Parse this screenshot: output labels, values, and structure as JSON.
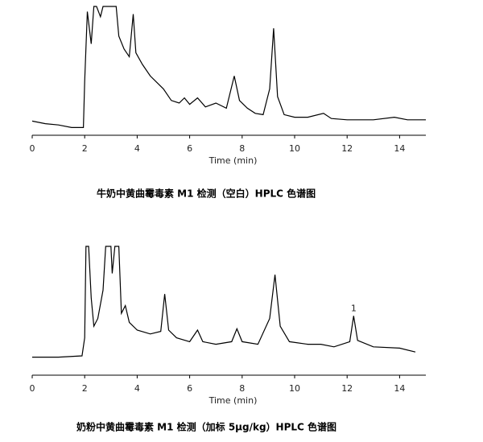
{
  "chart_data": [
    {
      "type": "line",
      "xlabel": "Time (min)",
      "caption": "牛奶中黄曲霉毒素 M1 检测（空白）HPLC 色谱图",
      "xlim": [
        0,
        15
      ],
      "xticks": [
        0,
        2,
        4,
        6,
        8,
        10,
        12,
        14
      ],
      "ylim": [
        0,
        100
      ],
      "color": "#000000",
      "x": [
        0,
        0.5,
        1,
        1.5,
        1.95,
        2.0,
        2.1,
        2.25,
        2.35,
        2.45,
        2.6,
        2.7,
        3.2,
        3.3,
        3.5,
        3.7,
        3.85,
        3.95,
        4.2,
        4.5,
        5,
        5.3,
        5.6,
        5.8,
        6.0,
        6.3,
        6.6,
        7.0,
        7.4,
        7.7,
        7.9,
        8.2,
        8.5,
        8.8,
        9.05,
        9.2,
        9.35,
        9.6,
        10,
        10.5,
        11.1,
        11.4,
        12,
        13,
        13.8,
        14.3,
        15
      ],
      "values": [
        11,
        9,
        8,
        6,
        6,
        42,
        96,
        71,
        100,
        100,
        92,
        100,
        100,
        77,
        67,
        61,
        94,
        64,
        55,
        46,
        36,
        27,
        25,
        29,
        24,
        29,
        22,
        25,
        21,
        46,
        27,
        21,
        17,
        16,
        36,
        83,
        30,
        16,
        14,
        14,
        17,
        13,
        12,
        12,
        14,
        12,
        12
      ]
    },
    {
      "type": "line",
      "xlabel": "Time (min)",
      "caption": "奶粉中黄曲霉毒素 M1 检测（加标 5μg/kg）HPLC 色谱图",
      "xlim": [
        0,
        15
      ],
      "xticks": [
        0,
        2,
        4,
        6,
        8,
        10,
        12,
        14
      ],
      "ylim": [
        0,
        100
      ],
      "color": "#000000",
      "annotations": [
        {
          "text": "1",
          "x": 12.25,
          "y": 46
        }
      ],
      "x": [
        0,
        1,
        1.9,
        2.0,
        2.05,
        2.15,
        2.25,
        2.35,
        2.5,
        2.7,
        2.8,
        3.0,
        3.05,
        3.15,
        3.3,
        3.4,
        3.55,
        3.7,
        4,
        4.5,
        4.9,
        5.05,
        5.2,
        5.5,
        6.0,
        6.3,
        6.5,
        7,
        7.6,
        7.8,
        8,
        8.6,
        9.05,
        9.25,
        9.45,
        9.8,
        10.5,
        11,
        11.5,
        12.1,
        12.25,
        12.4,
        13,
        14,
        14.6
      ],
      "values": [
        14,
        14,
        15,
        29,
        100,
        100,
        60,
        38,
        44,
        66,
        100,
        100,
        79,
        100,
        100,
        48,
        54,
        41,
        35,
        32,
        34,
        63,
        35,
        29,
        26,
        35,
        26,
        24,
        26,
        36,
        26,
        24,
        44,
        78,
        38,
        26,
        24,
        24,
        22,
        26,
        46,
        27,
        22,
        21,
        18
      ]
    }
  ]
}
